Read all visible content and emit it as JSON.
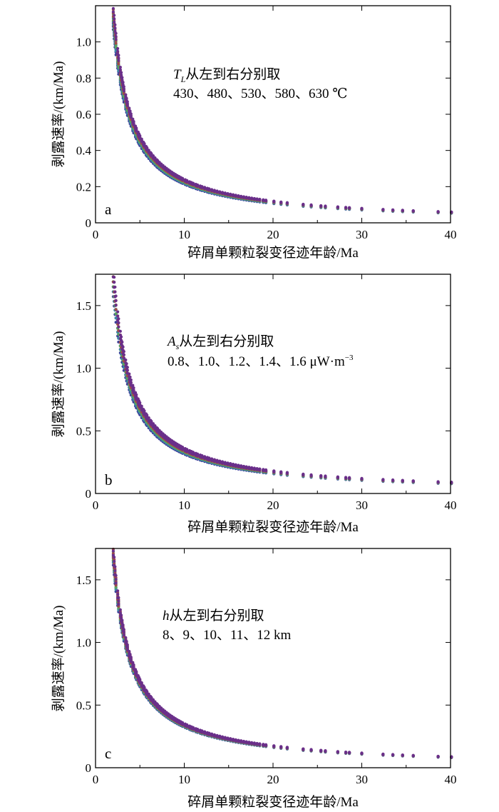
{
  "colors": [
    "#3f3f9a",
    "#3a87a6",
    "#5aa55a",
    "#a04a4a",
    "#6a2f8a"
  ],
  "chart_data": [
    {
      "type": "scatter",
      "panel_label": "a",
      "xlabel": "碎屑单颗粒裂变径迹年龄/Ma",
      "ylabel": "剥露速率/(km/Ma)",
      "xlim": [
        0,
        40
      ],
      "ylim": [
        0,
        1.2
      ],
      "xticks": [
        "0",
        "10",
        "20",
        "30",
        "40"
      ],
      "yticks": [
        "0",
        "0.2",
        "0.4",
        "0.6",
        "0.8",
        "1.0"
      ],
      "ytick_values": [
        0,
        0.2,
        0.4,
        0.6,
        0.8,
        1.0
      ],
      "annotation_line1_symbol": "T",
      "annotation_line1_sub": "L",
      "annotation_line1_text": "从左到右分别取",
      "annotation_line2": "430、480、530、580、630 ℃",
      "series": [
        {
          "name": "430",
          "k": 2.17,
          "spread": 0.004
        },
        {
          "name": "480",
          "k": 2.22,
          "spread": 0.004
        },
        {
          "name": "530",
          "k": 2.27,
          "spread": 0.004
        },
        {
          "name": "580",
          "k": 2.32,
          "spread": 0.004
        },
        {
          "name": "630",
          "k": 2.37,
          "spread": 0.004
        }
      ],
      "grid": false
    },
    {
      "type": "scatter",
      "panel_label": "b",
      "xlabel": "碎屑单颗粒裂变径迹年龄/Ma",
      "ylabel": "剥露速率/(km/Ma)",
      "xlim": [
        0,
        40
      ],
      "ylim": [
        0,
        1.75
      ],
      "xticks": [
        "0",
        "10",
        "20",
        "30",
        "40"
      ],
      "yticks": [
        "0",
        "0.5",
        "1.0",
        "1.5"
      ],
      "ytick_values": [
        0,
        0.5,
        1.0,
        1.5
      ],
      "annotation_line1_symbol": "A",
      "annotation_line1_sub": "s",
      "annotation_line1_text": "从左到右分别取",
      "annotation_line2": "0.8、1.0、1.2、1.4、1.6 μW·m",
      "annotation_line2_sup": "−3",
      "series": [
        {
          "name": "0.8",
          "k": 3.22,
          "spread": 0.006
        },
        {
          "name": "1.0",
          "k": 3.3,
          "spread": 0.006
        },
        {
          "name": "1.2",
          "k": 3.38,
          "spread": 0.006
        },
        {
          "name": "1.4",
          "k": 3.46,
          "spread": 0.006
        },
        {
          "name": "1.6",
          "k": 3.54,
          "spread": 0.006
        }
      ],
      "grid": false
    },
    {
      "type": "scatter",
      "panel_label": "c",
      "xlabel": "碎屑单颗粒裂变径迹年龄/Ma",
      "ylabel": "剥露速率/(km/Ma)",
      "xlim": [
        0,
        40
      ],
      "ylim": [
        0,
        1.75
      ],
      "xticks": [
        "0",
        "10",
        "20",
        "30",
        "40"
      ],
      "yticks": [
        "0",
        "0.5",
        "1.0",
        "1.5"
      ],
      "ytick_values": [
        0,
        0.5,
        1.0,
        1.5
      ],
      "annotation_line1_symbol": "h",
      "annotation_line1_sub": "",
      "annotation_line1_text": "从左到右分别取",
      "annotation_line2": "8、9、10、11、12 km",
      "series": [
        {
          "name": "8",
          "k": 3.3,
          "spread": 0.005
        },
        {
          "name": "9",
          "k": 3.34,
          "spread": 0.005
        },
        {
          "name": "10",
          "k": 3.38,
          "spread": 0.005
        },
        {
          "name": "11",
          "k": 3.42,
          "spread": 0.005
        },
        {
          "name": "12",
          "k": 3.46,
          "spread": 0.005
        }
      ],
      "grid": false
    }
  ],
  "sample_ages": [
    2.0,
    2.1,
    2.2,
    2.3,
    2.5,
    2.6,
    2.8,
    2.9,
    3.0,
    3.1,
    3.2,
    3.4,
    3.5,
    3.6,
    3.8,
    3.9,
    4.0,
    4.2,
    4.3,
    4.5,
    4.6,
    4.8,
    4.9,
    5.0,
    5.2,
    5.4,
    5.5,
    5.7,
    5.8,
    6.0,
    6.2,
    6.3,
    6.5,
    6.7,
    6.9,
    7.0,
    7.2,
    7.4,
    7.6,
    7.8,
    8.0,
    8.2,
    8.4,
    8.6,
    8.8,
    9.0,
    9.2,
    9.4,
    9.6,
    9.8,
    10.1,
    10.3,
    10.6,
    10.8,
    11.0,
    11.3,
    11.5,
    11.8,
    12.0,
    12.3,
    12.6,
    12.8,
    13.1,
    13.4,
    13.7,
    14.0,
    14.3,
    14.6,
    14.9,
    15.2,
    15.5,
    15.8,
    16.1,
    16.4,
    16.7,
    17.0,
    17.3,
    17.6,
    17.9,
    18.2,
    18.5,
    18.9,
    19.2,
    20.1,
    20.9,
    21.6,
    23.4,
    24.3,
    25.4,
    25.9,
    27.3,
    28.2,
    28.6,
    30.0,
    32.4,
    33.5,
    34.6,
    35.8,
    38.6,
    40.1
  ]
}
